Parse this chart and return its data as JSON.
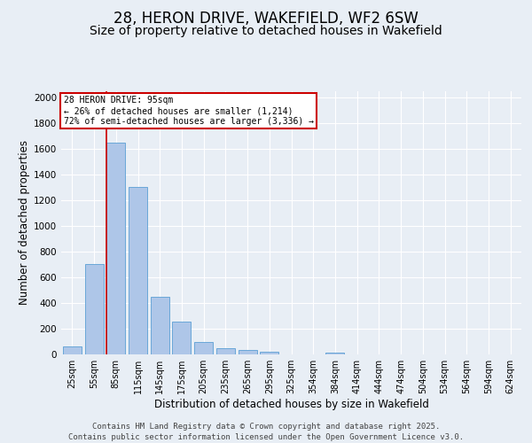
{
  "title": "28, HERON DRIVE, WAKEFIELD, WF2 6SW",
  "subtitle": "Size of property relative to detached houses in Wakefield",
  "xlabel": "Distribution of detached houses by size in Wakefield",
  "ylabel": "Number of detached properties",
  "categories": [
    "25sqm",
    "55sqm",
    "85sqm",
    "115sqm",
    "145sqm",
    "175sqm",
    "205sqm",
    "235sqm",
    "265sqm",
    "295sqm",
    "325sqm",
    "354sqm",
    "384sqm",
    "414sqm",
    "444sqm",
    "474sqm",
    "504sqm",
    "534sqm",
    "564sqm",
    "594sqm",
    "624sqm"
  ],
  "values": [
    65,
    700,
    1650,
    1300,
    450,
    255,
    95,
    48,
    32,
    20,
    0,
    0,
    12,
    0,
    0,
    0,
    0,
    0,
    0,
    0,
    0
  ],
  "bar_color": "#aec6e8",
  "bar_edge_color": "#5a9fd4",
  "vline_color": "#cc0000",
  "vline_xindex": 2,
  "annotation_line1": "28 HERON DRIVE: 95sqm",
  "annotation_line2": "← 26% of detached houses are smaller (1,214)",
  "annotation_line3": "72% of semi-detached houses are larger (3,336) →",
  "annotation_box_color": "#cc0000",
  "ylim": [
    0,
    2050
  ],
  "yticks": [
    0,
    200,
    400,
    600,
    800,
    1000,
    1200,
    1400,
    1600,
    1800,
    2000
  ],
  "bg_color": "#e8eef5",
  "plot_bg_color": "#e8eef5",
  "grid_color": "#ffffff",
  "footer_line1": "Contains HM Land Registry data © Crown copyright and database right 2025.",
  "footer_line2": "Contains public sector information licensed under the Open Government Licence v3.0.",
  "title_fontsize": 12,
  "subtitle_fontsize": 10,
  "label_fontsize": 8.5,
  "tick_fontsize": 7,
  "annot_fontsize": 7,
  "footer_fontsize": 6.5
}
